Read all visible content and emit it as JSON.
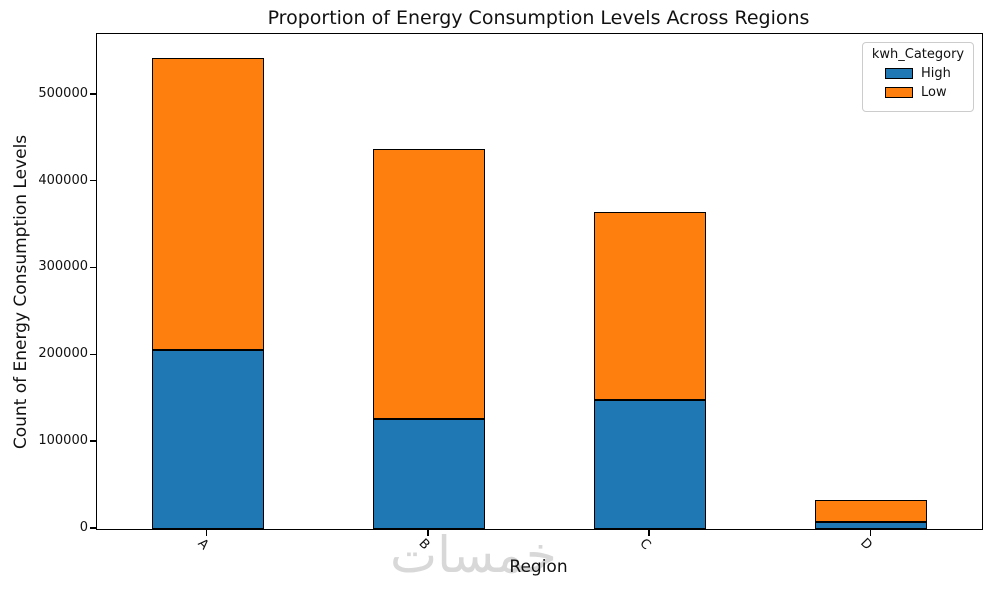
{
  "title": "Proportion of Energy Consumption Levels Across Regions",
  "chart_data": {
    "type": "bar",
    "stacked": true,
    "title": "Proportion of Energy Consumption Levels Across Regions",
    "xlabel": "Region",
    "ylabel": "Count of Energy Consumption Levels",
    "categories": [
      "A",
      "B",
      "C",
      "D"
    ],
    "series": [
      {
        "name": "High",
        "color": "#1f77b4",
        "values": [
          206000,
          127000,
          148000,
          8000
        ]
      },
      {
        "name": "Low",
        "color": "#ff7f0e",
        "values": [
          336000,
          311000,
          217000,
          25000
        ]
      }
    ],
    "totals": [
      542000,
      438000,
      365000,
      33000
    ],
    "ylim": [
      0,
      570000
    ],
    "yticks": [
      0,
      100000,
      200000,
      300000,
      400000,
      500000
    ],
    "ytick_labels": [
      "0",
      "100000",
      "200000",
      "300000",
      "400000",
      "500000"
    ],
    "xtick_rotation_deg": 45,
    "grid": false,
    "bar_edge_color": "#000000",
    "legend": {
      "title": "kwh_Category",
      "position": "upper right",
      "entries": [
        "High",
        "Low"
      ]
    }
  },
  "watermark": {
    "text": "خمسات",
    "color": "#d8d8d8"
  }
}
